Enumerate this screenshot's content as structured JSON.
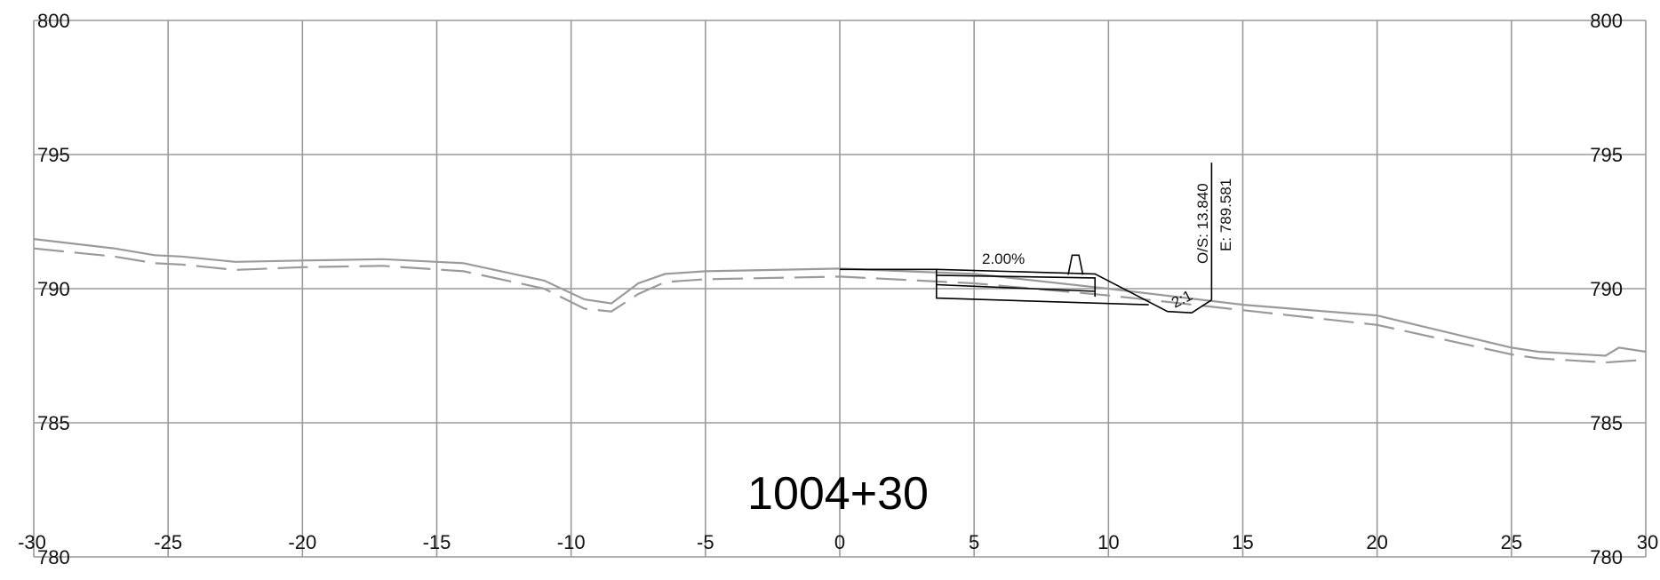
{
  "chart_data": {
    "type": "line",
    "station": "1004+30",
    "x_ticks": [
      -30,
      -25,
      -20,
      -15,
      -10,
      -5,
      0,
      5,
      10,
      15,
      20,
      25,
      30
    ],
    "y_ticks": [
      780,
      785,
      790,
      795,
      800
    ],
    "xlim": [
      -30,
      30
    ],
    "ylim": [
      780,
      800
    ],
    "grid": true,
    "annotations": {
      "cross_slope": "2.00%",
      "side_slope": "2:1",
      "offset": "O/S: 13.840",
      "elevation": "E: 789.581"
    },
    "existing_ground_solid": [
      [
        -30,
        791.85
      ],
      [
        -27,
        791.5
      ],
      [
        -25.5,
        791.25
      ],
      [
        -24.5,
        791.2
      ],
      [
        -23.5,
        791.1
      ],
      [
        -22.5,
        791.0
      ],
      [
        -20,
        791.05
      ],
      [
        -17,
        791.1
      ],
      [
        -14,
        790.95
      ],
      [
        -11,
        790.3
      ],
      [
        -9.5,
        789.6
      ],
      [
        -8.5,
        789.45
      ],
      [
        -7.5,
        790.2
      ],
      [
        -6.5,
        790.55
      ],
      [
        -5,
        790.65
      ],
      [
        0,
        790.75
      ],
      [
        5,
        790.55
      ],
      [
        10,
        790.0
      ],
      [
        15,
        789.4
      ],
      [
        20,
        789.0
      ],
      [
        25,
        787.8
      ],
      [
        26,
        787.65
      ],
      [
        28.5,
        787.5
      ],
      [
        29.0,
        787.8
      ],
      [
        30,
        787.65
      ]
    ],
    "existing_ground_dashed": [
      [
        -30,
        791.5
      ],
      [
        -27,
        791.2
      ],
      [
        -25.5,
        790.95
      ],
      [
        -24.5,
        790.9
      ],
      [
        -23.5,
        790.8
      ],
      [
        -22.5,
        790.7
      ],
      [
        -20,
        790.8
      ],
      [
        -17,
        790.85
      ],
      [
        -14,
        790.65
      ],
      [
        -11,
        790.0
      ],
      [
        -9.5,
        789.25
      ],
      [
        -8.5,
        789.15
      ],
      [
        -7.5,
        789.8
      ],
      [
        -6.5,
        790.25
      ],
      [
        -5,
        790.35
      ],
      [
        0,
        790.45
      ],
      [
        5,
        790.2
      ],
      [
        10,
        789.75
      ],
      [
        15,
        789.2
      ],
      [
        20,
        788.65
      ],
      [
        25,
        787.55
      ],
      [
        26,
        787.4
      ],
      [
        28.5,
        787.25
      ],
      [
        30,
        787.35
      ]
    ],
    "design_template": [
      [
        [
          0,
          790.72
        ],
        [
          3.6,
          790.72
        ],
        [
          9.5,
          790.55
        ],
        [
          12.2,
          789.15
        ],
        [
          13.1,
          789.1
        ],
        [
          13.84,
          789.581
        ]
      ],
      [
        [
          3.6,
          790.72
        ],
        [
          3.6,
          789.65
        ],
        [
          11.5,
          789.4
        ]
      ],
      [
        [
          3.6,
          790.5
        ],
        [
          9.5,
          790.4
        ],
        [
          9.5,
          789.7
        ]
      ],
      [
        [
          3.6,
          790.15
        ],
        [
          9.5,
          789.9
        ]
      ],
      [
        [
          8.5,
          790.52
        ],
        [
          8.65,
          791.25
        ],
        [
          8.9,
          791.25
        ],
        [
          9.05,
          790.52
        ]
      ],
      [
        [
          13.84,
          789.581
        ],
        [
          13.84,
          794.7
        ]
      ]
    ]
  }
}
